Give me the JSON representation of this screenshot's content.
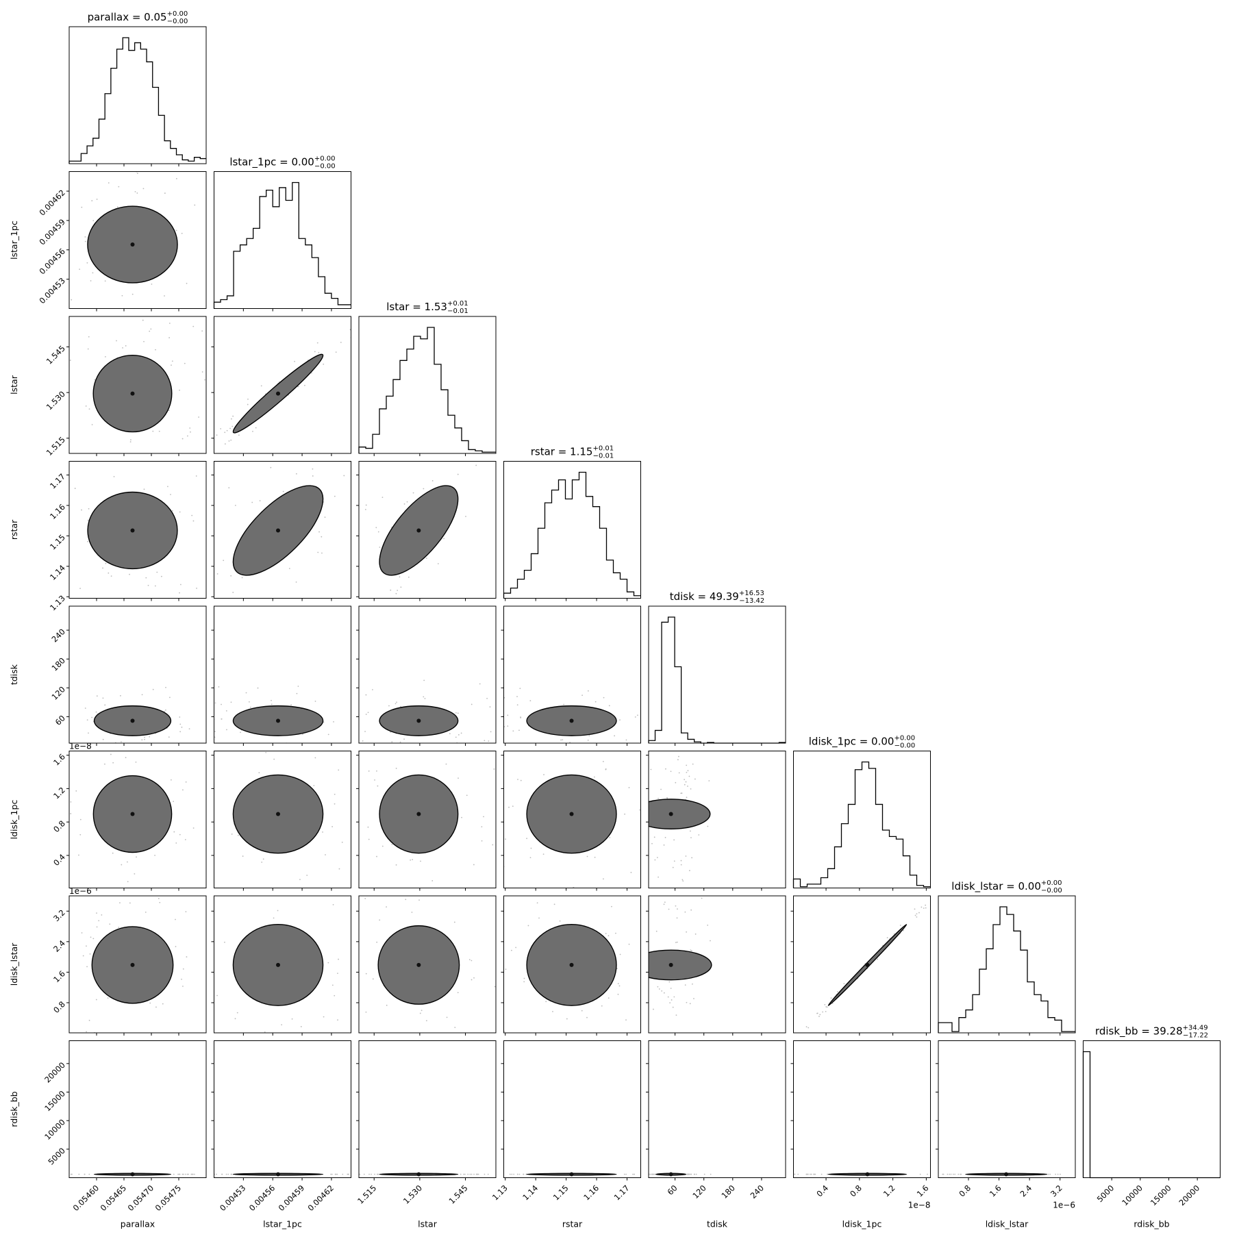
{
  "chart_data": {
    "type": "corner",
    "params": [
      {
        "name": "parallax",
        "title": "parallax = 0.05",
        "sup": "+0.00",
        "sub": "−0.00",
        "range": [
          0.05455,
          0.0548
        ],
        "ticks": [
          0.0546,
          0.05465,
          0.0547,
          0.05475
        ],
        "tick_labels": [
          "0.05460",
          "0.05465",
          "0.05470",
          "0.05475"
        ],
        "sci": "",
        "hist": [
          2,
          2,
          8,
          14,
          20,
          35,
          55,
          75,
          90,
          99,
          89,
          95,
          90,
          80,
          60,
          38,
          18,
          12,
          7,
          3,
          2,
          5,
          4
        ]
      },
      {
        "name": "lstar_1pc",
        "title": "lstar_1pc = 0.00",
        "sup": "+0.00",
        "sub": "−0.00",
        "range": [
          0.0045,
          0.00464
        ],
        "ticks": [
          0.00453,
          0.00456,
          0.00459,
          0.00462
        ],
        "tick_labels": [
          "0.00453",
          "0.00456",
          "0.00459",
          "0.00462"
        ],
        "sci": "",
        "hist": [
          5,
          7,
          10,
          45,
          50,
          55,
          63,
          88,
          93,
          80,
          95,
          85,
          99,
          55,
          50,
          40,
          25,
          12,
          8,
          3,
          3
        ]
      },
      {
        "name": "lstar",
        "title": "lstar = 1.53",
        "sup": "+0.01",
        "sub": "−0.01",
        "range": [
          1.51,
          1.555
        ],
        "ticks": [
          1.515,
          1.53,
          1.545
        ],
        "tick_labels": [
          "1.515",
          "1.530",
          "1.545"
        ],
        "sci": "",
        "hist": [
          5,
          4,
          15,
          35,
          45,
          58,
          73,
          82,
          92,
          90,
          99,
          70,
          50,
          30,
          20,
          10,
          3,
          2,
          1,
          1
        ]
      },
      {
        "name": "rstar",
        "title": "rstar = 1.15",
        "sup": "+0.01",
        "sub": "−0.01",
        "range": [
          1.1295,
          1.1745
        ],
        "ticks": [
          1.13,
          1.14,
          1.15,
          1.16,
          1.17
        ],
        "tick_labels": [
          "1.13",
          "1.14",
          "1.15",
          "1.16",
          "1.17"
        ],
        "sci": "",
        "hist": [
          4,
          8,
          15,
          22,
          35,
          55,
          75,
          85,
          93,
          78,
          93,
          99,
          80,
          72,
          55,
          30,
          20,
          15,
          5,
          2
        ]
      },
      {
        "name": "tdisk",
        "title": "tdisk = 49.39",
        "sup": "+16.53",
        "sub": "−13.42",
        "range": [
          5,
          290
        ],
        "ticks": [
          60,
          120,
          180,
          240
        ],
        "tick_labels": [
          "60",
          "120",
          "180",
          "240"
        ],
        "sci": "",
        "hist": [
          2,
          10,
          95,
          99,
          60,
          8,
          3,
          1,
          0,
          0.5,
          0,
          0,
          0,
          0,
          0,
          0,
          0,
          0,
          0,
          0,
          0.5
        ]
      },
      {
        "name": "ldisk_1pc",
        "title": "ldisk_1pc = 0.00",
        "sup": "+0.00",
        "sub": "−0.00",
        "range": [
          1e-10,
          1.65e-08
        ],
        "ticks": [
          4e-09,
          8e-09,
          1.2e-08,
          1.6e-08
        ],
        "tick_labels": [
          "0.4",
          "0.8",
          "1.2",
          "1.6"
        ],
        "sci": "1e−8",
        "hist": [
          7,
          1,
          3,
          3,
          8,
          15,
          32,
          50,
          65,
          92,
          98,
          93,
          65,
          45,
          40,
          38,
          25,
          10,
          2,
          1
        ]
      },
      {
        "name": "ldisk_lstar",
        "title": "ldisk_lstar = 0.00",
        "sup": "+0.00",
        "sub": "−0.00",
        "range": [
          1e-08,
          3.6e-06
        ],
        "ticks": [
          8e-07,
          1.6e-06,
          2.4e-06,
          3.2e-06
        ],
        "tick_labels": [
          "0.8",
          "1.6",
          "2.4",
          "3.2"
        ],
        "sci": "1e−6",
        "hist": [
          8,
          8,
          1,
          12,
          18,
          30,
          50,
          66,
          85,
          99,
          93,
          80,
          65,
          40,
          30,
          25,
          12,
          10,
          1,
          1
        ]
      },
      {
        "name": "rdisk_bb",
        "title": "rdisk_bb = 39.28",
        "sup": "+34.49",
        "sub": "−17.22",
        "range": [
          0,
          24000
        ],
        "ticks": [
          5000,
          10000,
          15000,
          20000
        ],
        "tick_labels": [
          "5000",
          "10000",
          "15000",
          "20000"
        ],
        "sci": "",
        "hist": [
          99,
          0,
          0,
          0,
          0,
          0,
          0,
          0,
          0,
          0,
          0,
          0,
          0,
          0,
          0,
          0,
          0,
          0,
          0,
          0
        ]
      }
    ],
    "x_axis_label_rows": "bottom",
    "y_axis_label_cols": "left",
    "density_contours": [
      0.5,
      1.0,
      1.5,
      2.0
    ],
    "correlations": {
      "lstar|lstar_1pc": 0.97,
      "rstar|lstar_1pc": 0.7,
      "rstar|lstar": 0.7,
      "ldisk_lstar|ldisk_1pc": 0.998
    }
  }
}
